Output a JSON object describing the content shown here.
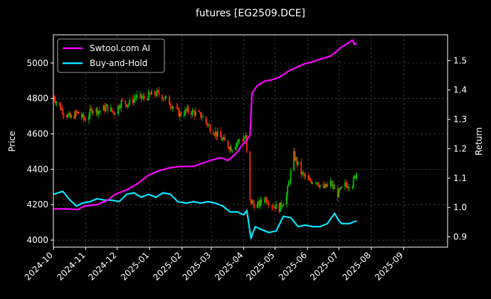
{
  "chart_data": {
    "type": "line",
    "title": "futures [EG2509.DCE]",
    "ylabel_left": "Price",
    "ylabel_right": "Return",
    "x_ticks": [
      "2024-10",
      "2024-11",
      "2024-12",
      "2025-01",
      "2025-02",
      "2025-03",
      "2025-04",
      "2025-05",
      "2025-06",
      "2025-07",
      "2025-08",
      "2025-09"
    ],
    "x_range": [
      "2024-10-01",
      "2025-10-13"
    ],
    "y_left": {
      "ticks": [
        4000,
        4200,
        4400,
        4600,
        4800,
        5000
      ],
      "ylim": [
        3960,
        5160
      ]
    },
    "y_right": {
      "ticks": [
        0.9,
        1.0,
        1.1,
        1.2,
        1.3,
        1.4,
        1.5
      ],
      "ylim": [
        0.865,
        1.588
      ]
    },
    "grid": true,
    "legend_position": "top-left",
    "colors": {
      "background": "#000000",
      "up": "#00c800",
      "down": "#ff2a00",
      "strategy": "#ff00ff",
      "benchmark": "#00e5ff",
      "grid": "#555555"
    },
    "series": [
      {
        "name": "Swtool.com AI",
        "axis": "right",
        "color": "#ff00ff",
        "dates": [
          "2024-10-01",
          "2024-10-15",
          "2024-10-24",
          "2024-10-31",
          "2024-11-12",
          "2024-11-22",
          "2024-11-29",
          "2024-12-10",
          "2024-12-20",
          "2024-12-31",
          "2025-01-10",
          "2025-01-20",
          "2025-01-31",
          "2025-02-12",
          "2025-02-20",
          "2025-02-28",
          "2025-03-10",
          "2025-03-17",
          "2025-03-25",
          "2025-03-31",
          "2025-04-03",
          "2025-04-07",
          "2025-04-09",
          "2025-04-14",
          "2025-04-21",
          "2025-04-28",
          "2025-05-06",
          "2025-05-14",
          "2025-05-23",
          "2025-05-30",
          "2025-06-05",
          "2025-06-13",
          "2025-06-23",
          "2025-06-30",
          "2025-07-03",
          "2025-07-10",
          "2025-07-14",
          "2025-07-16",
          "2025-07-18"
        ],
        "values": [
          0.995,
          0.995,
          0.993,
          1.005,
          1.01,
          1.025,
          1.045,
          1.06,
          1.08,
          1.11,
          1.125,
          1.135,
          1.14,
          1.14,
          1.15,
          1.16,
          1.17,
          1.16,
          1.185,
          1.215,
          1.225,
          1.245,
          1.39,
          1.415,
          1.43,
          1.435,
          1.445,
          1.465,
          1.48,
          1.49,
          1.495,
          1.505,
          1.515,
          1.535,
          1.545,
          1.56,
          1.57,
          1.555,
          1.56
        ]
      },
      {
        "name": "Buy-and-Hold",
        "axis": "right",
        "color": "#00e5ff",
        "dates": [
          "2024-10-01",
          "2024-10-10",
          "2024-10-17",
          "2024-10-23",
          "2024-10-29",
          "2024-11-05",
          "2024-11-12",
          "2024-11-19",
          "2024-11-26",
          "2024-12-03",
          "2024-12-10",
          "2024-12-17",
          "2024-12-24",
          "2024-12-31",
          "2025-01-07",
          "2025-01-14",
          "2025-01-21",
          "2025-01-28",
          "2025-02-05",
          "2025-02-12",
          "2025-02-19",
          "2025-02-26",
          "2025-03-05",
          "2025-03-12",
          "2025-03-19",
          "2025-03-26",
          "2025-04-01",
          "2025-04-04",
          "2025-04-08",
          "2025-04-12",
          "2025-04-18",
          "2025-04-25",
          "2025-05-02",
          "2025-05-09",
          "2025-05-16",
          "2025-05-23",
          "2025-05-30",
          "2025-06-06",
          "2025-06-13",
          "2025-06-20",
          "2025-06-27",
          "2025-07-01",
          "2025-07-04",
          "2025-07-11",
          "2025-07-18"
        ],
        "values": [
          1.045,
          1.055,
          1.025,
          1.005,
          1.015,
          1.02,
          1.03,
          1.025,
          1.025,
          1.02,
          1.045,
          1.05,
          1.035,
          1.045,
          1.035,
          1.05,
          1.045,
          1.02,
          1.015,
          1.02,
          1.015,
          1.02,
          1.015,
          1.005,
          0.985,
          0.985,
          0.975,
          0.99,
          0.895,
          0.935,
          0.925,
          0.915,
          0.92,
          0.97,
          0.965,
          0.935,
          0.94,
          0.935,
          0.935,
          0.945,
          0.98,
          0.955,
          0.945,
          0.945,
          0.955
        ]
      },
      {
        "name": "Price",
        "type": "candlestick",
        "axis": "left",
        "dates": [
          "2024-10-01",
          "2024-10-10",
          "2024-10-17",
          "2024-10-24",
          "2024-10-31",
          "2024-11-07",
          "2024-11-14",
          "2024-11-21",
          "2024-11-28",
          "2024-12-05",
          "2024-12-12",
          "2024-12-19",
          "2024-12-26",
          "2025-01-02",
          "2025-01-09",
          "2025-01-16",
          "2025-01-23",
          "2025-01-30",
          "2025-02-06",
          "2025-02-13",
          "2025-02-20",
          "2025-02-27",
          "2025-03-06",
          "2025-03-13",
          "2025-03-20",
          "2025-03-27",
          "2025-04-03",
          "2025-04-07",
          "2025-04-14",
          "2025-04-21",
          "2025-04-28",
          "2025-05-05",
          "2025-05-12",
          "2025-05-19",
          "2025-05-26",
          "2025-06-02",
          "2025-06-09",
          "2025-06-16",
          "2025-06-23",
          "2025-06-30",
          "2025-07-07",
          "2025-07-14",
          "2025-07-18"
        ],
        "values": [
          4810,
          4730,
          4690,
          4720,
          4680,
          4740,
          4730,
          4750,
          4720,
          4780,
          4770,
          4810,
          4800,
          4820,
          4830,
          4800,
          4760,
          4710,
          4730,
          4720,
          4700,
          4640,
          4600,
          4560,
          4520,
          4560,
          4580,
          4220,
          4190,
          4240,
          4200,
          4180,
          4250,
          4480,
          4380,
          4330,
          4340,
          4290,
          4320,
          4260,
          4310,
          4320,
          4380
        ]
      }
    ]
  }
}
